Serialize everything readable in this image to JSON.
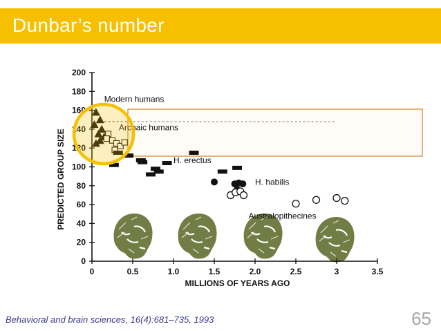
{
  "slide": {
    "title": "Dunbar’s number",
    "citation": "Behavioral and brain sciences, 16(4):681–735, 1993",
    "page_number": "65"
  },
  "colors": {
    "title_bar": "#f6c000",
    "highlight_circle": "#f6c000",
    "highlight_box": "#d9893a",
    "skull": "#5e6b2c"
  },
  "chart_data": {
    "type": "scatter",
    "xlabel": "MILLIONS OF YEARS AGO",
    "ylabel": "PREDICTED GROUP SIZE",
    "xlim": [
      0,
      3.5
    ],
    "ylim": [
      0,
      200
    ],
    "x_ticks": [
      "0",
      "0.5",
      "1.0",
      "1.5",
      "2.0",
      "2.5",
      "3",
      "3.5"
    ],
    "y_ticks": [
      "0",
      "20",
      "40",
      "60",
      "80",
      "100",
      "120",
      "140",
      "160",
      "180",
      "200"
    ],
    "reference_line_y": 148,
    "series": [
      {
        "name": "Modern humans",
        "marker": "triangle",
        "points": [
          [
            0.05,
            158
          ],
          [
            0.1,
            150
          ],
          [
            0.03,
            145
          ],
          [
            0.12,
            140
          ],
          [
            0.08,
            135
          ],
          [
            0.15,
            132
          ],
          [
            0.05,
            125
          ],
          [
            0.1,
            128
          ]
        ]
      },
      {
        "name": "Archaic humans",
        "marker": "square-open",
        "points": [
          [
            0.2,
            135
          ],
          [
            0.25,
            128
          ],
          [
            0.3,
            125
          ],
          [
            0.35,
            122
          ],
          [
            0.28,
            118
          ],
          [
            0.4,
            126
          ],
          [
            0.18,
            130
          ]
        ]
      },
      {
        "name": "H. erectus",
        "marker": "bar",
        "points": [
          [
            0.27,
            102
          ],
          [
            0.32,
            115
          ],
          [
            0.45,
            112
          ],
          [
            0.6,
            107
          ],
          [
            0.62,
            105
          ],
          [
            0.72,
            92
          ],
          [
            0.78,
            98
          ],
          [
            0.82,
            95
          ],
          [
            0.92,
            104
          ],
          [
            1.25,
            115
          ],
          [
            1.6,
            95
          ],
          [
            1.78,
            99
          ]
        ]
      },
      {
        "name": "H. habilis",
        "marker": "circle-filled",
        "points": [
          [
            1.5,
            84
          ],
          [
            1.75,
            82
          ],
          [
            1.8,
            83
          ],
          [
            1.85,
            82
          ],
          [
            1.78,
            76
          ],
          [
            1.8,
            75
          ]
        ]
      },
      {
        "name": "",
        "marker": "circle-open",
        "points": [
          [
            1.7,
            70
          ],
          [
            1.76,
            73
          ],
          [
            1.82,
            74
          ],
          [
            1.86,
            70
          ]
        ]
      },
      {
        "name": "Australopithecines",
        "marker": "circle-open",
        "points": [
          [
            2.5,
            61
          ],
          [
            2.75,
            65
          ],
          [
            3.0,
            67
          ],
          [
            3.1,
            64
          ]
        ]
      }
    ],
    "annotations": [
      {
        "text": "Modern humans",
        "x": 0.15,
        "y": 169
      },
      {
        "text": "Archaic humans",
        "x": 0.33,
        "y": 139
      },
      {
        "text": "H. erectus",
        "x": 1.0,
        "y": 104
      },
      {
        "text": "H. habilis",
        "x": 2.0,
        "y": 81
      },
      {
        "text": "Australopithecines",
        "x": 1.92,
        "y": 45
      }
    ],
    "grid": false,
    "legend": "none"
  }
}
